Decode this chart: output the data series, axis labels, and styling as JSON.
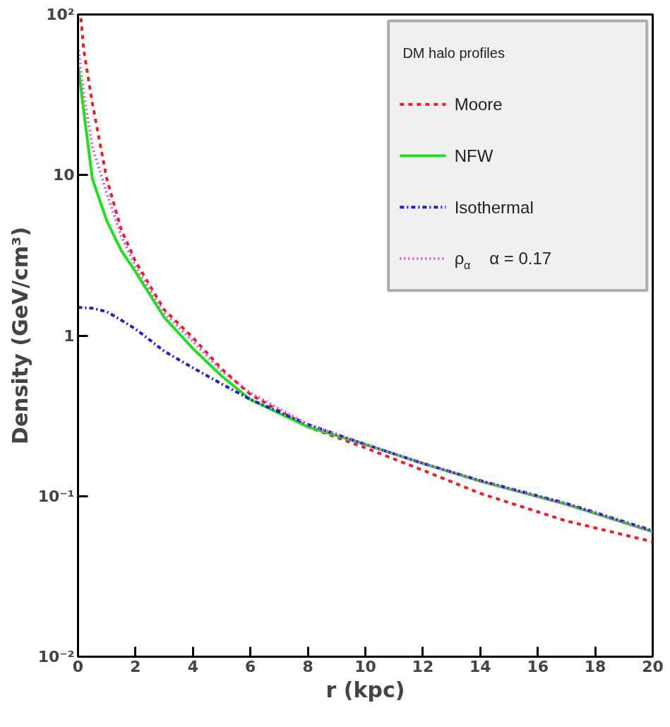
{
  "chart_data": {
    "type": "line",
    "xlabel": "r (kpc)",
    "ylabel": "Density (GeV/cm³)",
    "legend_title": "DM halo profiles",
    "log": "y",
    "grid": false,
    "legend": "top right",
    "xlim": [
      0,
      20
    ],
    "xticks": [
      0,
      2,
      4,
      6,
      8,
      10,
      12,
      14,
      16,
      18,
      20
    ],
    "ylim": [
      0.01,
      100
    ],
    "yticks": [
      {
        "value": 0.01,
        "label": "10⁻²"
      },
      {
        "value": 0.1,
        "label": "10⁻¹"
      },
      1,
      10,
      {
        "value": 100,
        "label": "10²"
      }
    ],
    "series": [
      {
        "name": "Moore",
        "color": "#e8202a",
        "line_style": "dashed",
        "x": [
          0.1,
          0.2,
          0.5,
          1,
          1.5,
          2,
          3,
          4,
          5,
          6,
          8,
          10,
          12,
          14,
          17,
          20
        ],
        "values": [
          95,
          60,
          28,
          9.5,
          4.6,
          2.9,
          1.45,
          0.97,
          0.62,
          0.43,
          0.27,
          0.2,
          0.145,
          0.104,
          0.07,
          0.052
        ]
      },
      {
        "name": "NFW",
        "color": "#22dd22",
        "line_style": "solid",
        "x": [
          0.02,
          0.1,
          0.2,
          0.5,
          1,
          1.5,
          2,
          3,
          4,
          5,
          6,
          8,
          10,
          12,
          14,
          17,
          20
        ],
        "values": [
          46,
          35,
          25,
          9.5,
          5.2,
          3.4,
          2.5,
          1.3,
          0.83,
          0.56,
          0.4,
          0.27,
          0.21,
          0.16,
          0.124,
          0.089,
          0.06
        ]
      },
      {
        "name": "Isothermal",
        "color": "#1f1fcc",
        "line_style": "dashdot",
        "x": [
          0,
          0.5,
          1,
          1.5,
          2,
          3,
          4,
          5,
          6,
          8,
          10,
          12,
          14,
          17,
          20
        ],
        "values": [
          1.5,
          1.48,
          1.41,
          1.25,
          1.1,
          0.8,
          0.63,
          0.5,
          0.4,
          0.28,
          0.21,
          0.16,
          0.125,
          0.09,
          0.061
        ]
      },
      {
        "name": "ρ$_{α}$   α = 0.17",
        "color": "#dd55dd",
        "line_style": "dotted",
        "x": [
          0.02,
          0.1,
          0.2,
          0.5,
          1,
          1.5,
          2,
          3,
          4,
          5,
          6,
          8,
          10,
          12,
          14,
          17,
          20
        ],
        "values": [
          60,
          45,
          32,
          15,
          7.7,
          4.2,
          2.7,
          1.38,
          0.92,
          0.6,
          0.44,
          0.28,
          0.21,
          0.16,
          0.124,
          0.089,
          0.06
        ]
      }
    ]
  }
}
